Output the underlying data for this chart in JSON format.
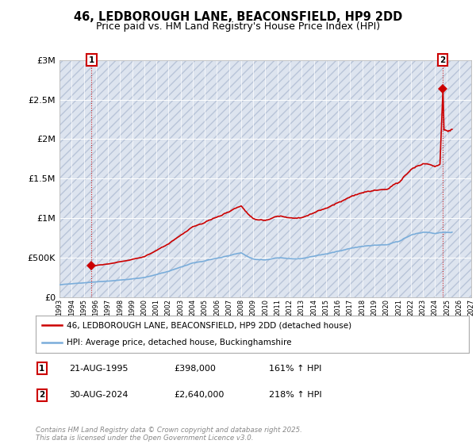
{
  "title": "46, LEDBOROUGH LANE, BEACONSFIELD, HP9 2DD",
  "subtitle": "Price paid vs. HM Land Registry's House Price Index (HPI)",
  "title_fontsize": 10.5,
  "subtitle_fontsize": 9,
  "background_color": "#ffffff",
  "plot_bg_color": "#dde4ef",
  "grid_color": "#ffffff",
  "sale1_date": 1995.64,
  "sale1_price": 398000,
  "sale2_date": 2024.64,
  "sale2_price": 2640000,
  "sale_color": "#cc0000",
  "hpi_color": "#7aadda",
  "annotation_box_color": "#cc0000",
  "ylim": [
    0,
    3000000
  ],
  "xlim_start": 1993.0,
  "xlim_end": 2027.0,
  "legend_label1": "46, LEDBOROUGH LANE, BEACONSFIELD, HP9 2DD (detached house)",
  "legend_label2": "HPI: Average price, detached house, Buckinghamshire",
  "note1_num": "1",
  "note1_date": "21-AUG-1995",
  "note1_price": "£398,000",
  "note1_hpi": "161% ↑ HPI",
  "note2_num": "2",
  "note2_date": "30-AUG-2024",
  "note2_price": "£2,640,000",
  "note2_hpi": "218% ↑ HPI",
  "footer": "Contains HM Land Registry data © Crown copyright and database right 2025.\nThis data is licensed under the Open Government Licence v3.0.",
  "yticks": [
    0,
    500000,
    1000000,
    1500000,
    2000000,
    2500000,
    3000000
  ],
  "ytick_labels": [
    "£0",
    "£500K",
    "£1M",
    "£1.5M",
    "£2M",
    "£2.5M",
    "£3M"
  ]
}
